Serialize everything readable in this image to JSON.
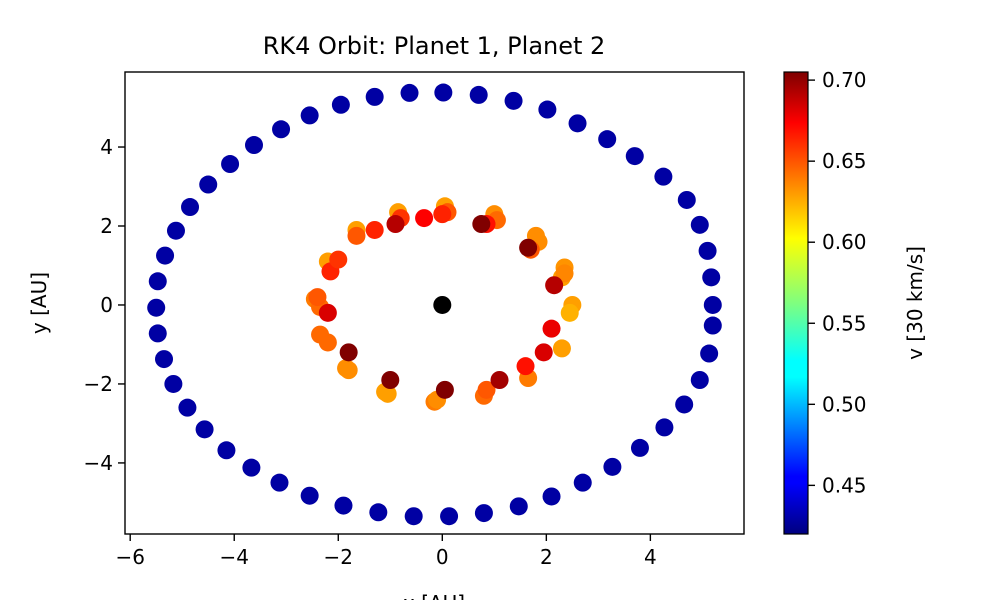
{
  "chart_data": {
    "type": "scatter",
    "title": "RK4 Orbit: Planet 1, Planet 2",
    "xlabel": "x [AU]",
    "ylabel": "y [AU]",
    "xlim": [
      -6.1,
      5.8
    ],
    "ylim": [
      -5.8,
      5.9
    ],
    "xticks": [
      -6,
      -4,
      -2,
      0,
      2,
      4
    ],
    "yticks": [
      -4,
      -2,
      0,
      2,
      4
    ],
    "grid": false,
    "colorbar": {
      "label": "v [30 km/s]",
      "range": [
        0.42,
        0.705
      ],
      "ticks": [
        0.45,
        0.5,
        0.55,
        0.6,
        0.65,
        0.7
      ],
      "tick_labels": [
        "0.45",
        "0.50",
        "0.55",
        "0.60",
        "0.65",
        "0.70"
      ],
      "colormap": "jet"
    },
    "star": {
      "name": "Star",
      "x": 0,
      "y": 0,
      "color": "#000000"
    },
    "series": [
      {
        "points": [
          [
            5.2,
            0.0,
            0.43
          ],
          [
            5.17,
            0.7,
            0.43
          ],
          [
            5.1,
            1.37,
            0.43
          ],
          [
            4.95,
            2.03,
            0.43
          ],
          [
            4.7,
            2.66,
            0.43
          ],
          [
            4.25,
            3.25,
            0.43
          ],
          [
            3.7,
            3.77,
            0.43
          ],
          [
            3.17,
            4.2,
            0.43
          ],
          [
            2.6,
            4.6,
            0.43
          ],
          [
            2.02,
            4.95,
            0.43
          ],
          [
            1.37,
            5.17,
            0.43
          ],
          [
            0.7,
            5.32,
            0.43
          ],
          [
            0.02,
            5.38,
            0.43
          ],
          [
            -0.63,
            5.37,
            0.43
          ],
          [
            -1.3,
            5.27,
            0.43
          ],
          [
            -1.95,
            5.07,
            0.43
          ],
          [
            -2.55,
            4.8,
            0.43
          ],
          [
            -3.1,
            4.45,
            0.43
          ],
          [
            -3.62,
            4.05,
            0.43
          ],
          [
            -4.08,
            3.57,
            0.43
          ],
          [
            -4.5,
            3.05,
            0.43
          ],
          [
            -4.85,
            2.48,
            0.43
          ],
          [
            -5.12,
            1.88,
            0.43
          ],
          [
            -5.33,
            1.25,
            0.43
          ],
          [
            -5.47,
            0.6,
            0.43
          ],
          [
            -5.5,
            -0.07,
            0.43
          ],
          [
            -5.47,
            -0.72,
            0.43
          ],
          [
            -5.35,
            -1.37,
            0.43
          ],
          [
            -5.17,
            -2.0,
            0.43
          ],
          [
            -4.9,
            -2.6,
            0.43
          ],
          [
            -4.57,
            -3.15,
            0.43
          ],
          [
            -4.15,
            -3.68,
            0.43
          ],
          [
            -3.67,
            -4.12,
            0.43
          ],
          [
            -3.13,
            -4.5,
            0.43
          ],
          [
            -2.55,
            -4.83,
            0.43
          ],
          [
            -1.9,
            -5.08,
            0.43
          ],
          [
            -1.23,
            -5.25,
            0.43
          ],
          [
            -0.55,
            -5.35,
            0.43
          ],
          [
            0.13,
            -5.35,
            0.43
          ],
          [
            0.8,
            -5.27,
            0.43
          ],
          [
            1.47,
            -5.1,
            0.43
          ],
          [
            2.1,
            -4.85,
            0.43
          ],
          [
            2.7,
            -4.5,
            0.43
          ],
          [
            3.27,
            -4.1,
            0.43
          ],
          [
            3.8,
            -3.62,
            0.43
          ],
          [
            4.27,
            -3.1,
            0.43
          ],
          [
            4.65,
            -2.52,
            0.43
          ],
          [
            4.95,
            -1.9,
            0.43
          ],
          [
            5.13,
            -1.23,
            0.43
          ],
          [
            5.2,
            -0.52,
            0.43
          ]
        ]
      },
      {
        "points": [
          [
            2.5,
            0.0,
            0.625
          ],
          [
            2.35,
            0.95,
            0.628
          ],
          [
            1.8,
            1.75,
            0.63
          ],
          [
            1.0,
            2.3,
            0.63
          ],
          [
            0.05,
            2.5,
            0.625
          ],
          [
            -0.85,
            2.35,
            0.625
          ],
          [
            -1.65,
            1.9,
            0.625
          ],
          [
            -2.2,
            1.1,
            0.625
          ],
          [
            -2.45,
            0.15,
            0.635
          ],
          [
            -2.35,
            -0.75,
            0.64
          ],
          [
            -1.85,
            -1.6,
            0.63
          ],
          [
            -1.1,
            -2.2,
            0.625
          ],
          [
            -0.15,
            -2.45,
            0.635
          ],
          [
            0.8,
            -2.3,
            0.64
          ],
          [
            1.65,
            -1.85,
            0.635
          ],
          [
            2.3,
            -1.1,
            0.625
          ],
          [
            2.45,
            -0.2,
            0.62
          ],
          [
            2.3,
            0.7,
            0.625
          ],
          [
            1.85,
            1.6,
            0.63
          ],
          [
            1.05,
            2.15,
            0.64
          ],
          [
            0.1,
            2.35,
            0.645
          ],
          [
            -0.8,
            2.2,
            0.655
          ],
          [
            -1.65,
            1.75,
            0.645
          ],
          [
            -2.15,
            0.85,
            0.66
          ],
          [
            -2.35,
            -0.05,
            0.64
          ],
          [
            -2.2,
            -0.95,
            0.64
          ],
          [
            -1.8,
            -1.65,
            0.63
          ],
          [
            -1.05,
            -2.25,
            0.625
          ],
          [
            -0.1,
            -2.4,
            0.63
          ],
          [
            0.85,
            -2.15,
            0.645
          ],
          [
            1.6,
            -1.55,
            0.665
          ],
          [
            2.1,
            -0.6,
            0.675
          ],
          [
            2.35,
            0.8,
            0.632
          ],
          [
            1.7,
            1.4,
            0.645
          ],
          [
            0.85,
            2.05,
            0.665
          ],
          [
            -0.35,
            2.2,
            0.67
          ],
          [
            -1.3,
            1.9,
            0.66
          ],
          [
            -2.0,
            1.15,
            0.655
          ],
          [
            -2.4,
            0.2,
            0.645
          ],
          [
            -2.2,
            -0.2,
            0.68
          ],
          [
            -1.8,
            -1.2,
            0.705
          ],
          [
            -1.0,
            -1.9,
            0.705
          ],
          [
            0.05,
            -2.15,
            0.705
          ],
          [
            1.1,
            -1.9,
            0.695
          ],
          [
            1.95,
            -1.2,
            0.68
          ],
          [
            2.15,
            0.5,
            0.69
          ],
          [
            1.65,
            1.45,
            0.705
          ],
          [
            0.75,
            2.05,
            0.705
          ],
          [
            -0.9,
            2.05,
            0.69
          ],
          [
            0.0,
            2.3,
            0.66
          ]
        ]
      }
    ]
  }
}
